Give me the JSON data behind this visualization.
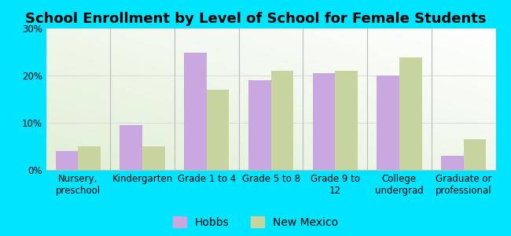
{
  "title": "School Enrollment by Level of School for Female Students",
  "categories": [
    "Nursery,\npreschool",
    "Kindergarten",
    "Grade 1 to 4",
    "Grade 5 to 8",
    "Grade 9 to\n12",
    "College\nundergrad",
    "Graduate or\nprofessional"
  ],
  "hobbs": [
    4.0,
    9.5,
    24.8,
    19.0,
    20.5,
    20.0,
    3.0
  ],
  "new_mexico": [
    5.0,
    5.0,
    17.0,
    21.0,
    21.0,
    23.8,
    6.5
  ],
  "hobbs_color": "#C9A8E0",
  "nm_color": "#C8D4A0",
  "background_color": "#00E5FF",
  "ylim": [
    0,
    30
  ],
  "yticks": [
    0,
    10,
    20,
    30
  ],
  "ytick_labels": [
    "0%",
    "10%",
    "20%",
    "30%"
  ],
  "legend_hobbs": "Hobbs",
  "legend_nm": "New Mexico",
  "bar_width": 0.35,
  "title_fontsize": 13,
  "tick_fontsize": 8.5,
  "legend_fontsize": 10,
  "grid_color": "#dddddd",
  "separator_color": "#bbbbbb"
}
